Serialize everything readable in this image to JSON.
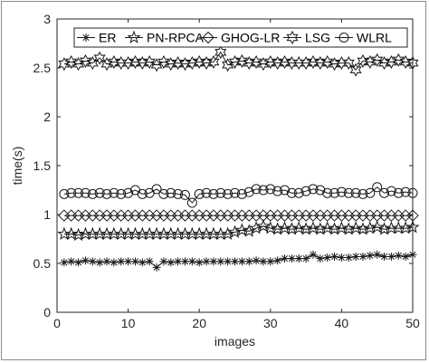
{
  "chart_data": {
    "type": "line",
    "xlabel": "images",
    "ylabel": "time(s)",
    "xlim": [
      0,
      50
    ],
    "ylim": [
      0,
      3
    ],
    "xticks": [
      "0",
      "10",
      "20",
      "30",
      "40",
      "50"
    ],
    "yticks": [
      "0",
      "0.5",
      "1",
      "1.5",
      "2",
      "2.5",
      "3"
    ],
    "grid": false,
    "legend_position": "top",
    "x": [
      1,
      2,
      3,
      4,
      5,
      6,
      7,
      8,
      9,
      10,
      11,
      12,
      13,
      14,
      15,
      16,
      17,
      18,
      19,
      20,
      21,
      22,
      23,
      24,
      25,
      26,
      27,
      28,
      29,
      30,
      31,
      32,
      33,
      34,
      35,
      36,
      37,
      38,
      39,
      40,
      41,
      42,
      43,
      44,
      45,
      46,
      47,
      48,
      49,
      50
    ],
    "series": [
      {
        "name": "ER",
        "marker": "asterisk",
        "values": [
          0.51,
          0.52,
          0.51,
          0.53,
          0.52,
          0.51,
          0.52,
          0.51,
          0.52,
          0.52,
          0.52,
          0.51,
          0.52,
          0.46,
          0.52,
          0.51,
          0.52,
          0.52,
          0.52,
          0.51,
          0.52,
          0.52,
          0.52,
          0.52,
          0.52,
          0.52,
          0.52,
          0.53,
          0.52,
          0.52,
          0.53,
          0.55,
          0.55,
          0.55,
          0.55,
          0.59,
          0.55,
          0.56,
          0.57,
          0.56,
          0.56,
          0.57,
          0.57,
          0.58,
          0.59,
          0.57,
          0.57,
          0.58,
          0.57,
          0.59
        ]
      },
      {
        "name": "PN-RPCA",
        "marker": "pentagram",
        "values": [
          0.8,
          0.8,
          0.79,
          0.8,
          0.8,
          0.8,
          0.8,
          0.8,
          0.8,
          0.8,
          0.8,
          0.8,
          0.8,
          0.8,
          0.8,
          0.8,
          0.8,
          0.8,
          0.8,
          0.8,
          0.8,
          0.8,
          0.8,
          0.8,
          0.82,
          0.84,
          0.83,
          0.86,
          0.88,
          0.86,
          0.85,
          0.86,
          0.85,
          0.86,
          0.85,
          0.86,
          0.85,
          0.86,
          0.85,
          0.86,
          0.85,
          0.86,
          0.85,
          0.86,
          0.87,
          0.85,
          0.86,
          0.86,
          0.86,
          0.87
        ]
      },
      {
        "name": "GHOG-LR",
        "marker": "diamond",
        "values": [
          0.99,
          0.99,
          0.99,
          0.99,
          0.99,
          0.99,
          0.99,
          0.99,
          0.99,
          0.99,
          0.99,
          0.99,
          0.99,
          0.99,
          0.99,
          0.99,
          0.99,
          0.99,
          0.99,
          0.99,
          0.99,
          0.99,
          0.99,
          0.99,
          0.99,
          0.99,
          0.99,
          0.99,
          0.99,
          0.99,
          0.99,
          0.99,
          0.99,
          0.99,
          0.99,
          0.99,
          0.99,
          0.99,
          0.99,
          0.99,
          0.99,
          0.99,
          0.99,
          0.99,
          0.99,
          0.99,
          0.99,
          0.99,
          0.99,
          0.99
        ]
      },
      {
        "name": "LSG",
        "marker": "hexagram",
        "values": [
          2.54,
          2.56,
          2.54,
          2.57,
          2.55,
          2.6,
          2.54,
          2.56,
          2.55,
          2.55,
          2.56,
          2.55,
          2.56,
          2.53,
          2.56,
          2.54,
          2.55,
          2.54,
          2.55,
          2.56,
          2.55,
          2.56,
          2.66,
          2.53,
          2.56,
          2.57,
          2.55,
          2.56,
          2.54,
          2.56,
          2.55,
          2.56,
          2.55,
          2.55,
          2.55,
          2.56,
          2.55,
          2.56,
          2.54,
          2.55,
          2.55,
          2.48,
          2.57,
          2.56,
          2.58,
          2.55,
          2.56,
          2.58,
          2.56,
          2.55
        ]
      },
      {
        "name": "WLRL",
        "marker": "circle",
        "values": [
          1.21,
          1.22,
          1.22,
          1.22,
          1.21,
          1.22,
          1.21,
          1.22,
          1.21,
          1.22,
          1.25,
          1.21,
          1.22,
          1.26,
          1.21,
          1.22,
          1.21,
          1.2,
          1.12,
          1.21,
          1.22,
          1.21,
          1.22,
          1.21,
          1.22,
          1.21,
          1.23,
          1.26,
          1.25,
          1.26,
          1.24,
          1.25,
          1.22,
          1.22,
          1.24,
          1.26,
          1.25,
          1.22,
          1.22,
          1.23,
          1.22,
          1.22,
          1.21,
          1.22,
          1.28,
          1.22,
          1.24,
          1.22,
          1.23,
          1.22
        ]
      }
    ]
  }
}
